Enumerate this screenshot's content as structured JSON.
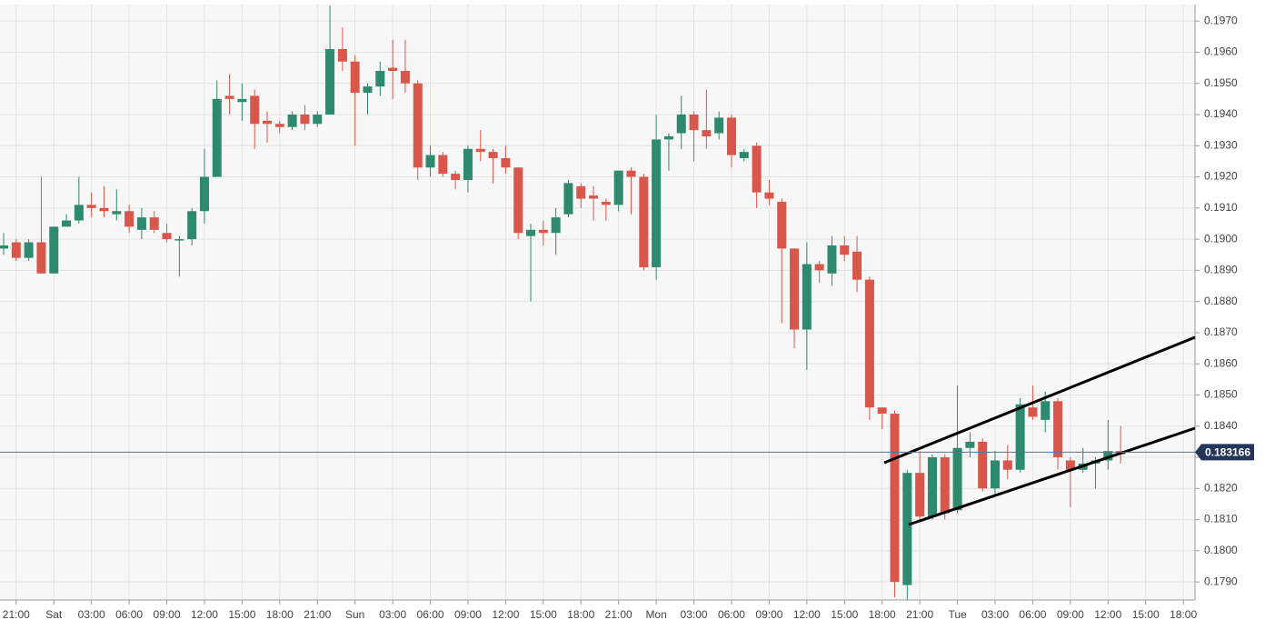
{
  "chart_data": {
    "type": "candlestick",
    "categories": [
      null,
      "21:00",
      null,
      null,
      "Sat",
      null,
      null,
      "03:00",
      null,
      null,
      "06:00",
      null,
      null,
      "09:00",
      null,
      null,
      "12:00",
      null,
      null,
      "15:00",
      null,
      null,
      "18:00",
      null,
      null,
      "21:00",
      null,
      null,
      "Sun",
      null,
      null,
      "03:00",
      null,
      null,
      "06:00",
      null,
      null,
      "09:00",
      null,
      null,
      "12:00",
      null,
      null,
      "15:00",
      null,
      null,
      "18:00",
      null,
      null,
      "21:00",
      null,
      null,
      "Mon",
      null,
      null,
      "03:00",
      null,
      null,
      "06:00",
      null,
      null,
      "09:00",
      null,
      null,
      "12:00",
      null,
      null,
      "15:00",
      null,
      null,
      "18:00",
      null,
      null,
      "21:00",
      null,
      null,
      "Tue",
      null,
      null,
      "03:00",
      null,
      null,
      "06:00",
      null,
      null,
      "09:00",
      null,
      null,
      "12:00",
      null,
      null,
      "15:00",
      null,
      null,
      "18:00"
    ],
    "open": [
      0.1897,
      0.1899,
      0.1894,
      0.1899,
      0.1889,
      0.1904,
      0.1906,
      0.1911,
      0.191,
      0.1908,
      0.1909,
      0.1903,
      0.1907,
      0.1902,
      0.19,
      0.19,
      0.1909,
      0.192,
      0.1946,
      0.1944,
      0.1946,
      0.1938,
      0.1937,
      0.1936,
      0.194,
      0.1937,
      0.194,
      0.1961,
      0.1957,
      0.1947,
      0.1949,
      0.1955,
      0.1954,
      0.195,
      0.1923,
      0.1927,
      0.1921,
      0.1919,
      0.1929,
      0.1928,
      0.1926,
      0.1923,
      0.1901,
      0.1903,
      0.1902,
      0.1908,
      0.1917,
      0.1914,
      0.1912,
      0.1911,
      0.1922,
      0.192,
      0.1891,
      0.1932,
      0.1934,
      0.194,
      0.1935,
      0.1934,
      0.1939,
      0.1926,
      0.193,
      0.1915,
      0.1912,
      0.1897,
      0.1871,
      0.1892,
      0.1889,
      0.1898,
      0.1896,
      0.1887,
      0.1846,
      0.1844,
      0.1789,
      0.1825,
      0.1811,
      0.183,
      0.1813,
      0.1833,
      0.1835,
      0.182,
      0.1829,
      0.1826,
      0.1846,
      0.1842,
      0.1848,
      0.1829,
      0.1826,
      0.1828,
      0.1829,
      0.1832,
      null,
      null,
      null,
      null,
      null
    ],
    "high": [
      0.1902,
      0.19,
      0.19,
      0.192,
      0.1904,
      0.1908,
      0.192,
      0.1915,
      0.1917,
      0.1916,
      0.1911,
      0.191,
      0.1909,
      0.1905,
      0.1901,
      0.191,
      0.1929,
      0.1951,
      0.1953,
      0.195,
      0.1948,
      0.1941,
      0.1938,
      0.1941,
      0.1943,
      0.1941,
      0.1975,
      0.1968,
      0.1959,
      0.195,
      0.1957,
      0.1964,
      0.1964,
      0.1951,
      0.193,
      0.1928,
      0.1922,
      0.193,
      0.1935,
      0.1929,
      0.193,
      0.1923,
      0.1905,
      0.1906,
      0.191,
      0.1919,
      0.1918,
      0.1917,
      0.1913,
      0.1922,
      0.1923,
      0.1921,
      0.194,
      0.1934,
      0.1946,
      0.1941,
      0.1948,
      0.1941,
      0.194,
      0.1929,
      0.1931,
      0.1919,
      0.1913,
      0.1897,
      0.1899,
      0.1893,
      0.1901,
      0.1901,
      0.1901,
      0.1888,
      0.1846,
      0.1845,
      0.1826,
      0.1832,
      0.1831,
      0.1831,
      0.1853,
      0.1838,
      0.1836,
      0.1832,
      0.1834,
      0.1849,
      0.1853,
      0.1851,
      0.1849,
      0.183,
      0.1833,
      0.183,
      0.1842,
      0.184,
      null,
      null,
      null,
      null,
      null
    ],
    "low": [
      0.1895,
      0.1893,
      0.1893,
      0.1889,
      0.1889,
      0.1904,
      0.1905,
      0.1907,
      0.1907,
      0.1906,
      0.1902,
      0.19,
      0.1902,
      0.1899,
      0.1888,
      0.1898,
      0.1905,
      0.192,
      0.194,
      0.1938,
      0.1929,
      0.1931,
      0.1934,
      0.1935,
      0.1935,
      0.1936,
      0.194,
      0.1954,
      0.193,
      0.194,
      0.1946,
      0.1945,
      0.1947,
      0.1919,
      0.192,
      0.192,
      0.1916,
      0.1915,
      0.1925,
      0.1918,
      0.1921,
      0.19,
      0.188,
      0.1898,
      0.1895,
      0.1907,
      0.191,
      0.1906,
      0.1906,
      0.1909,
      0.1908,
      0.189,
      0.1887,
      0.1922,
      0.1929,
      0.1925,
      0.1929,
      0.1932,
      0.1923,
      0.1925,
      0.191,
      0.1911,
      0.1873,
      0.1865,
      0.1858,
      0.1886,
      0.1885,
      0.1893,
      0.1883,
      0.1842,
      0.1839,
      0.1785,
      0.1784,
      0.181,
      0.181,
      0.181,
      0.1812,
      0.183,
      0.1819,
      0.1818,
      0.1823,
      0.1825,
      0.1842,
      0.1838,
      0.1826,
      0.1814,
      0.1825,
      0.182,
      0.1826,
      0.1828,
      null,
      null,
      null,
      null,
      null
    ],
    "close": [
      0.1898,
      0.1894,
      0.1899,
      0.1889,
      0.1904,
      0.1906,
      0.1911,
      0.191,
      0.1909,
      0.1909,
      0.1904,
      0.1907,
      0.1903,
      0.19,
      0.19,
      0.1909,
      0.192,
      0.1945,
      0.1945,
      0.1945,
      0.1937,
      0.1937,
      0.1936,
      0.194,
      0.1937,
      0.194,
      0.1961,
      0.1957,
      0.1947,
      0.1949,
      0.1954,
      0.1954,
      0.195,
      0.1923,
      0.1927,
      0.1921,
      0.1919,
      0.1929,
      0.1928,
      0.1926,
      0.1923,
      0.1902,
      0.1903,
      0.1902,
      0.1907,
      0.1918,
      0.1913,
      0.1913,
      0.1911,
      0.1922,
      0.192,
      0.1891,
      0.1932,
      0.1933,
      0.194,
      0.1935,
      0.1933,
      0.1939,
      0.1927,
      0.1928,
      0.1915,
      0.1913,
      0.1897,
      0.1871,
      0.1892,
      0.189,
      0.1898,
      0.1895,
      0.1887,
      0.1846,
      0.1844,
      0.179,
      0.1825,
      0.1811,
      0.183,
      0.1812,
      0.1833,
      0.1835,
      0.182,
      0.1829,
      0.1826,
      0.1847,
      0.1843,
      0.1848,
      0.183,
      0.1826,
      0.1828,
      0.1829,
      0.1832,
      0.1831,
      null,
      null,
      null,
      null,
      null
    ],
    "up_color": "#2e8a6e",
    "down_color": "#d9574a",
    "current_price": 0.183166,
    "ylim": [
      0.17842,
      0.19753
    ],
    "yticks": [
      {
        "value": 0.179,
        "label": "0.1790"
      },
      {
        "value": 0.18,
        "label": "0.1800"
      },
      {
        "value": 0.181,
        "label": "0.1810"
      },
      {
        "value": 0.182,
        "label": "0.1820"
      },
      {
        "value": 0.183,
        "label": "0.1830"
      },
      {
        "value": 0.184,
        "label": "0.1840"
      },
      {
        "value": 0.185,
        "label": "0.1850"
      },
      {
        "value": 0.186,
        "label": "0.1860"
      },
      {
        "value": 0.187,
        "label": "0.1870"
      },
      {
        "value": 0.188,
        "label": "0.1880"
      },
      {
        "value": 0.189,
        "label": "0.1890"
      },
      {
        "value": 0.19,
        "label": "0.1900"
      },
      {
        "value": 0.191,
        "label": "0.1910"
      },
      {
        "value": 0.192,
        "label": "0.1920"
      },
      {
        "value": 0.193,
        "label": "0.1930"
      },
      {
        "value": 0.194,
        "label": "0.1940"
      },
      {
        "value": 0.195,
        "label": "0.1950"
      },
      {
        "value": 0.196,
        "label": "0.1960"
      },
      {
        "value": 0.197,
        "label": "0.1970"
      }
    ],
    "grid": true
  }
}
